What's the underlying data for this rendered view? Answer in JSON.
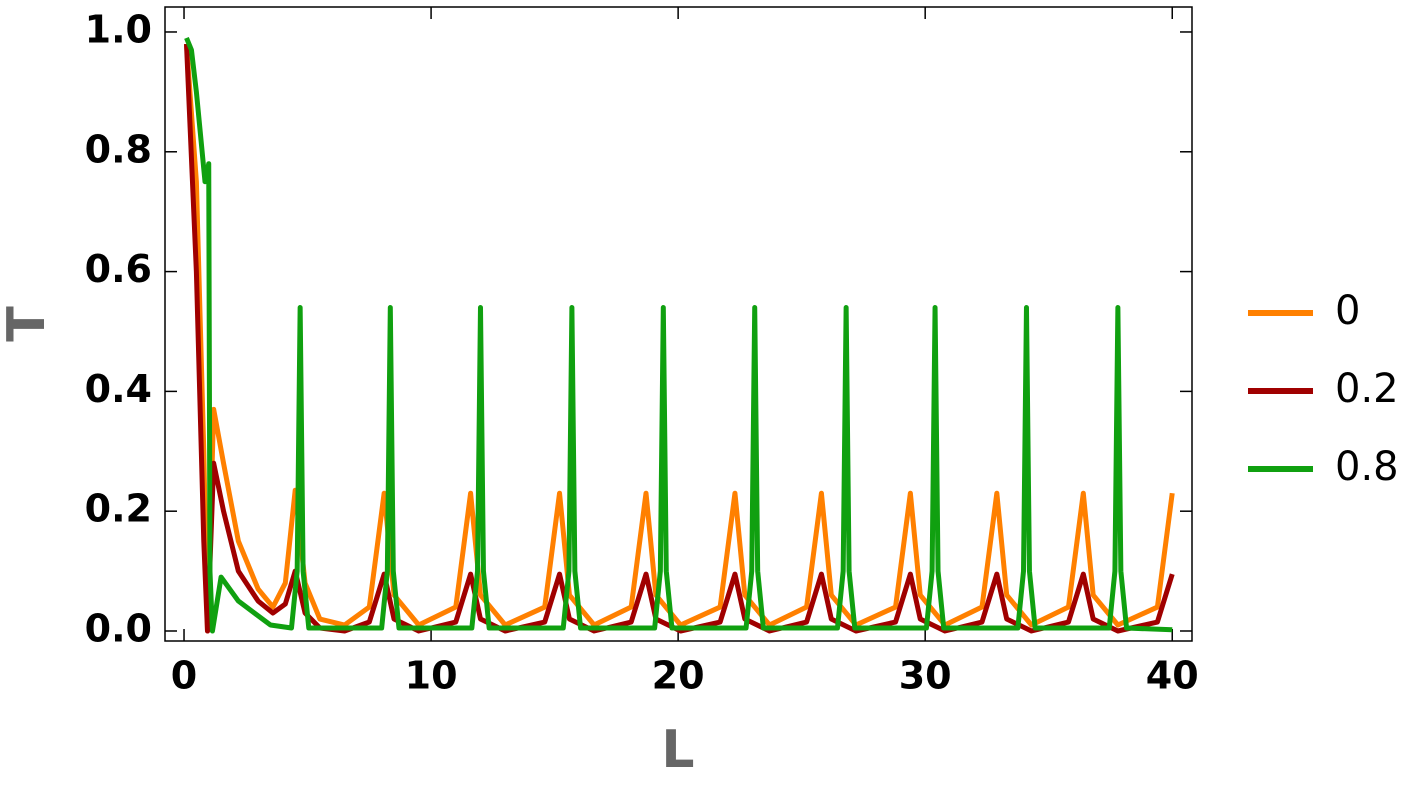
{
  "chart_data": {
    "type": "line",
    "x_label": "L",
    "y_label": "T",
    "xlim": [
      -0.77,
      40.8
    ],
    "ylim": [
      -0.0167,
      1.0417
    ],
    "xticks": [
      0,
      10,
      20,
      30,
      40
    ],
    "yticks": [
      {
        "value": 0,
        "label": "0.0"
      },
      0.2,
      0.4,
      0.6,
      0.8,
      {
        "value": 1,
        "label": "1.0"
      }
    ],
    "legend_position": "right",
    "series": [
      {
        "name": "0",
        "color": "#ff8000",
        "x": [
          0.1,
          0.5,
          0.8,
          0.95,
          1.2,
          1.6,
          2.2,
          3.0,
          3.6,
          4.1,
          4.5,
          4.9,
          5.5,
          6.5,
          7.5,
          8.1,
          8.5,
          9.5,
          11.0,
          11.6,
          12.0,
          13.0,
          14.6,
          15.2,
          15.6,
          16.6,
          18.1,
          18.7,
          19.1,
          20.1,
          21.7,
          22.3,
          22.7,
          23.7,
          25.2,
          25.8,
          26.2,
          27.2,
          28.8,
          29.4,
          29.8,
          30.8,
          32.3,
          32.9,
          33.3,
          34.3,
          35.8,
          36.4,
          36.8,
          37.8,
          39.4,
          40.0
        ],
        "values": [
          0.98,
          0.75,
          0.3,
          0.0,
          0.37,
          0.28,
          0.15,
          0.07,
          0.04,
          0.08,
          0.235,
          0.08,
          0.02,
          0.01,
          0.04,
          0.23,
          0.06,
          0.01,
          0.04,
          0.23,
          0.06,
          0.01,
          0.04,
          0.23,
          0.06,
          0.01,
          0.04,
          0.23,
          0.06,
          0.01,
          0.04,
          0.23,
          0.06,
          0.01,
          0.04,
          0.23,
          0.06,
          0.01,
          0.04,
          0.23,
          0.06,
          0.01,
          0.04,
          0.23,
          0.06,
          0.01,
          0.04,
          0.23,
          0.06,
          0.01,
          0.04,
          0.23
        ]
      },
      {
        "name": "0.2",
        "color": "#a00000",
        "x": [
          0.1,
          0.5,
          0.8,
          0.95,
          1.2,
          1.6,
          2.2,
          3.0,
          3.6,
          4.1,
          4.5,
          4.9,
          5.5,
          6.5,
          7.5,
          8.1,
          8.5,
          9.5,
          11.0,
          11.6,
          12.0,
          13.0,
          14.6,
          15.2,
          15.6,
          16.6,
          18.1,
          18.7,
          19.1,
          20.1,
          21.7,
          22.3,
          22.7,
          23.7,
          25.2,
          25.8,
          26.2,
          27.2,
          28.8,
          29.4,
          29.8,
          30.8,
          32.3,
          32.9,
          33.3,
          34.3,
          35.8,
          36.4,
          36.8,
          37.8,
          39.4,
          40.0
        ],
        "values": [
          0.98,
          0.6,
          0.15,
          0.0,
          0.28,
          0.2,
          0.1,
          0.05,
          0.03,
          0.045,
          0.1,
          0.03,
          0.005,
          0.0,
          0.015,
          0.095,
          0.02,
          0.0,
          0.015,
          0.095,
          0.02,
          0.0,
          0.015,
          0.095,
          0.02,
          0.0,
          0.015,
          0.095,
          0.02,
          0.0,
          0.015,
          0.095,
          0.02,
          0.0,
          0.015,
          0.095,
          0.02,
          0.0,
          0.015,
          0.095,
          0.02,
          0.0,
          0.015,
          0.095,
          0.02,
          0.0,
          0.015,
          0.095,
          0.02,
          0.0,
          0.015,
          0.095
        ]
      },
      {
        "name": "0.8",
        "color": "#10a010",
        "x": [
          0.1,
          0.3,
          0.5,
          0.85,
          1.0,
          1.05,
          1.15,
          1.5,
          2.2,
          3.5,
          4.35,
          4.58,
          4.7,
          4.82,
          5.05,
          8.0,
          8.23,
          8.35,
          8.47,
          8.7,
          11.65,
          11.88,
          12.0,
          12.12,
          12.35,
          15.35,
          15.58,
          15.7,
          15.82,
          16.05,
          19.05,
          19.28,
          19.4,
          19.52,
          19.75,
          22.75,
          22.98,
          23.1,
          23.22,
          23.45,
          26.45,
          26.68,
          26.8,
          26.92,
          27.15,
          30.05,
          30.28,
          30.4,
          30.52,
          30.75,
          33.75,
          33.98,
          34.1,
          34.22,
          34.45,
          37.45,
          37.68,
          37.8,
          37.92,
          38.15,
          40.0
        ],
        "values": [
          0.99,
          0.97,
          0.9,
          0.75,
          0.78,
          0.1,
          0.0,
          0.09,
          0.05,
          0.01,
          0.005,
          0.1,
          0.54,
          0.1,
          0.005,
          0.005,
          0.1,
          0.54,
          0.1,
          0.005,
          0.005,
          0.1,
          0.54,
          0.1,
          0.005,
          0.005,
          0.1,
          0.54,
          0.1,
          0.005,
          0.005,
          0.1,
          0.54,
          0.1,
          0.005,
          0.005,
          0.1,
          0.54,
          0.1,
          0.005,
          0.005,
          0.1,
          0.54,
          0.1,
          0.005,
          0.005,
          0.1,
          0.54,
          0.1,
          0.005,
          0.005,
          0.1,
          0.54,
          0.1,
          0.005,
          0.005,
          0.1,
          0.54,
          0.1,
          0.005,
          0.002
        ]
      }
    ]
  }
}
